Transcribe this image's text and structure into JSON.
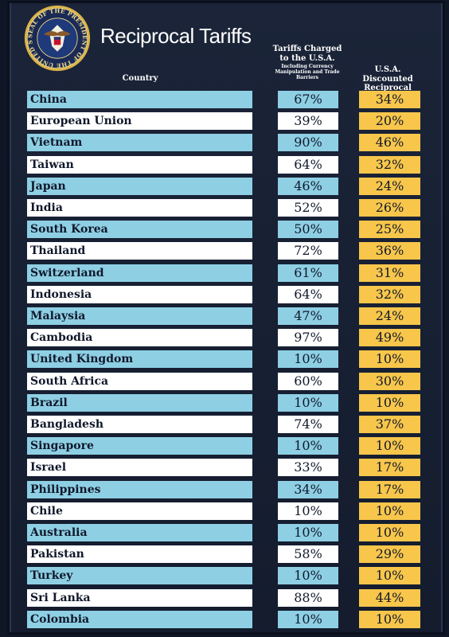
{
  "header": {
    "seal_text": "SEAL OF THE PRESIDENT OF THE UNITED STATES",
    "title": "Reciprocal Tariffs"
  },
  "colors": {
    "background": "#141c2e",
    "blue_row": "#8ecfe4",
    "white_row": "#ffffff",
    "gold": "#f7c64b"
  },
  "chart_data": {
    "type": "table",
    "title": "Reciprocal Tariffs",
    "columns": {
      "country": "Country",
      "charged": "Tariffs Charged to the U.S.A.",
      "charged_note": "Including Currency Manipulation and Trade Barriers",
      "discounted": "U.S.A. Discounted Reciprocal Tariffs"
    },
    "rows": [
      {
        "country": "China",
        "charged": "67%",
        "discounted": "34%"
      },
      {
        "country": "European Union",
        "charged": "39%",
        "discounted": "20%"
      },
      {
        "country": "Vietnam",
        "charged": "90%",
        "discounted": "46%"
      },
      {
        "country": "Taiwan",
        "charged": "64%",
        "discounted": "32%"
      },
      {
        "country": "Japan",
        "charged": "46%",
        "discounted": "24%"
      },
      {
        "country": "India",
        "charged": "52%",
        "discounted": "26%"
      },
      {
        "country": "South Korea",
        "charged": "50%",
        "discounted": "25%"
      },
      {
        "country": "Thailand",
        "charged": "72%",
        "discounted": "36%"
      },
      {
        "country": "Switzerland",
        "charged": "61%",
        "discounted": "31%"
      },
      {
        "country": "Indonesia",
        "charged": "64%",
        "discounted": "32%"
      },
      {
        "country": "Malaysia",
        "charged": "47%",
        "discounted": "24%"
      },
      {
        "country": "Cambodia",
        "charged": "97%",
        "discounted": "49%"
      },
      {
        "country": "United Kingdom",
        "charged": "10%",
        "discounted": "10%"
      },
      {
        "country": "South Africa",
        "charged": "60%",
        "discounted": "30%"
      },
      {
        "country": "Brazil",
        "charged": "10%",
        "discounted": "10%"
      },
      {
        "country": "Bangladesh",
        "charged": "74%",
        "discounted": "37%"
      },
      {
        "country": "Singapore",
        "charged": "10%",
        "discounted": "10%"
      },
      {
        "country": "Israel",
        "charged": "33%",
        "discounted": "17%"
      },
      {
        "country": "Philippines",
        "charged": "34%",
        "discounted": "17%"
      },
      {
        "country": "Chile",
        "charged": "10%",
        "discounted": "10%"
      },
      {
        "country": "Australia",
        "charged": "10%",
        "discounted": "10%"
      },
      {
        "country": "Pakistan",
        "charged": "58%",
        "discounted": "29%"
      },
      {
        "country": "Turkey",
        "charged": "10%",
        "discounted": "10%"
      },
      {
        "country": "Sri Lanka",
        "charged": "88%",
        "discounted": "44%"
      },
      {
        "country": "Colombia",
        "charged": "10%",
        "discounted": "10%"
      }
    ]
  }
}
